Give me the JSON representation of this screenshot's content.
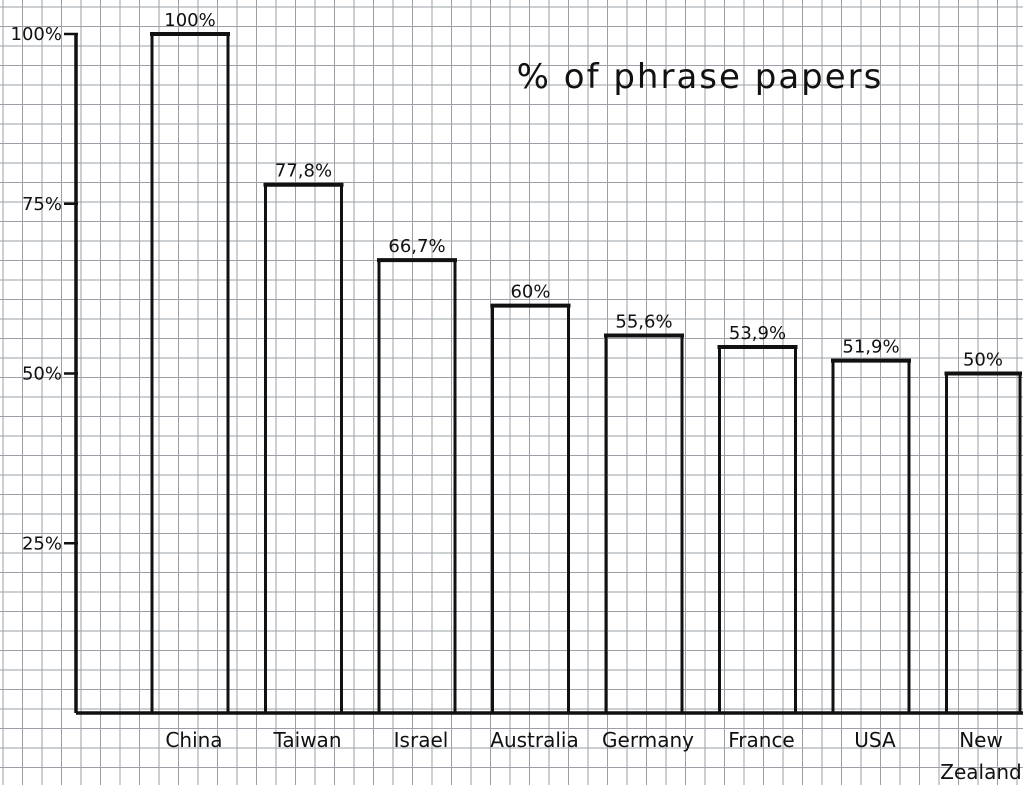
{
  "chart_data": {
    "type": "bar",
    "title": "% of phrase papers",
    "categories": [
      "China",
      "Taiwan",
      "Israel",
      "Australia",
      "Germany",
      "France",
      "USA",
      "New Zealand"
    ],
    "category_lines": [
      [
        "China"
      ],
      [
        "Taiwan"
      ],
      [
        "Israel"
      ],
      [
        "Australia"
      ],
      [
        "Germany"
      ],
      [
        "France"
      ],
      [
        "USA"
      ],
      [
        "New",
        "Zealand"
      ]
    ],
    "values": [
      100,
      77.8,
      66.7,
      60,
      55.6,
      53.9,
      51.9,
      50
    ],
    "data_labels": [
      "100%",
      "77,8%",
      "66,7%",
      "60%",
      "55,6%",
      "53,9%",
      "51,9%",
      "50%"
    ],
    "y_ticks": [
      {
        "value": 25,
        "label": "25%"
      },
      {
        "value": 50,
        "label": "50%"
      },
      {
        "value": 75,
        "label": "75%"
      },
      {
        "value": 100,
        "label": "100%"
      }
    ],
    "ylim": [
      0,
      100
    ],
    "grid": true,
    "legend": "none",
    "colors": {
      "ink": "#111111",
      "grid": "#9aa0a6",
      "paper": "#ffffff"
    }
  }
}
